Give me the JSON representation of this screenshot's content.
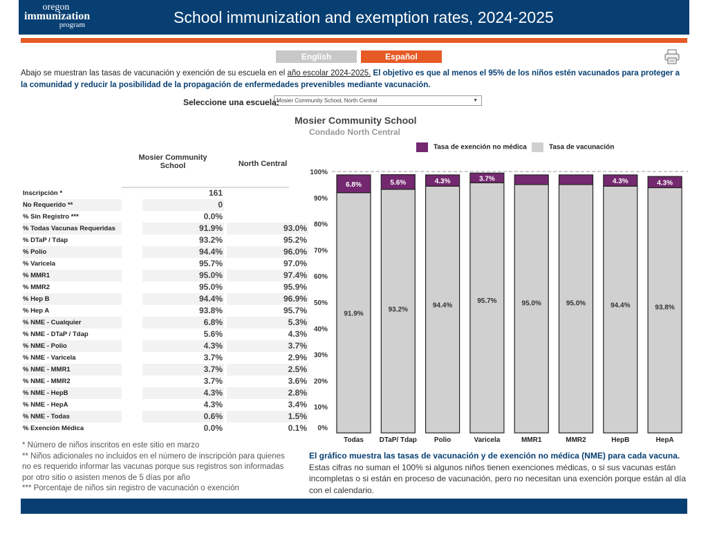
{
  "header": {
    "logo": [
      "oregon",
      "immunization",
      "program"
    ],
    "title": "School immunization and exemption rates, 2024-2025"
  },
  "lang": {
    "english": "English",
    "spanish": "Español"
  },
  "icons": {
    "print": "printer-icon"
  },
  "intro": {
    "p1": "Abajo se muestran las tasas de vacunación y exención de su escuela en el ",
    "link": "año escolar 2024-2025.",
    "p2": " El objetivo es que al menos el 95% de los niños estén vacunados para proteger a la comunidad y reducir la posibilidad de la propagación de enfermedades prevenibles mediante vacunación."
  },
  "selector": {
    "label": "Seleccione una escuela:",
    "value": "Mosier Community School, North Central"
  },
  "table": {
    "col1": "Mosier Community School",
    "col2": "North Central",
    "rows": [
      {
        "label": "Inscripción *",
        "school": "161",
        "county": ""
      },
      {
        "label": "No Requerido **",
        "school": "0",
        "county": ""
      },
      {
        "label": "% Sin Registro ***",
        "school": "0.0%",
        "county": ""
      },
      {
        "label": "% Todas Vacunas Requeridas",
        "school": "91.9%",
        "county": "93.0%"
      },
      {
        "label": "% DTaP / Tdap",
        "school": "93.2%",
        "county": "95.2%"
      },
      {
        "label": "% Polio",
        "school": "94.4%",
        "county": "96.0%"
      },
      {
        "label": "% Varicela",
        "school": "95.7%",
        "county": "97.0%"
      },
      {
        "label": "% MMR1",
        "school": "95.0%",
        "county": "97.4%"
      },
      {
        "label": "% MMR2",
        "school": "95.0%",
        "county": "95.9%"
      },
      {
        "label": "% Hep B",
        "school": "94.4%",
        "county": "96.9%"
      },
      {
        "label": "% Hep A",
        "school": "93.8%",
        "county": "95.7%"
      },
      {
        "label": "% NME - Cualquier",
        "school": "6.8%",
        "county": "5.3%"
      },
      {
        "label": "% NME - DTaP / Tdap",
        "school": "5.6%",
        "county": "4.3%"
      },
      {
        "label": "% NME - Polio",
        "school": "4.3%",
        "county": "3.7%"
      },
      {
        "label": "% NME - Varicela",
        "school": "3.7%",
        "county": "2.9%"
      },
      {
        "label": "% NME - MMR1",
        "school": "3.7%",
        "county": "2.5%"
      },
      {
        "label": "% NME - MMR2",
        "school": "3.7%",
        "county": "3.6%"
      },
      {
        "label": "% NME - HepB",
        "school": "4.3%",
        "county": "2.8%"
      },
      {
        "label": "% NME - HepA",
        "school": "4.3%",
        "county": "3.4%"
      },
      {
        "label": "% NME - Todas",
        "school": "0.6%",
        "county": "1.5%"
      },
      {
        "label": "% Exención Médica",
        "school": "0.0%",
        "county": "0.1%"
      }
    ]
  },
  "notes": [
    "* Número de niños inscritos en este sitio en marzo",
    "** Niños adicionales no incluidos en el número de inscripción para quienes no es requerido informar las vacunas porque sus registros son informadas por otro sitio o asisten menos de 5 días por año",
    "*** Porcentaje de niños sin registro de vacunación o exención"
  ],
  "chart_data": {
    "type": "bar",
    "stacked": true,
    "title": "Mosier Community School",
    "subtitle": "Condado North Central",
    "categories": [
      "Todas",
      "DTaP/ Tdap",
      "Polio",
      "Varicela",
      "MMR1",
      "MMR2",
      "HepB",
      "HepA"
    ],
    "series": [
      {
        "name": "Tasa de vacunación",
        "color": "#d0d0d0",
        "values": [
          91.9,
          93.2,
          94.4,
          95.7,
          95.0,
          95.0,
          94.4,
          93.8
        ],
        "labels": [
          "91.9%",
          "93.2%",
          "94.4%",
          "95.7%",
          "95.0%",
          "95.0%",
          "94.4%",
          "93.8%"
        ]
      },
      {
        "name": "Tasa de exención no médica",
        "color": "#74286f",
        "values": [
          6.8,
          5.6,
          4.3,
          3.7,
          3.7,
          3.7,
          4.3,
          4.3
        ],
        "labels": [
          "6.8%",
          "5.6%",
          "4.3%",
          "3.7%",
          "",
          "",
          "4.3%",
          "4.3%"
        ]
      }
    ],
    "yticks": [
      "0%",
      "10%",
      "20%",
      "30%",
      "40%",
      "50%",
      "60%",
      "70%",
      "80%",
      "90%",
      "100%"
    ],
    "ylim": [
      0,
      100
    ],
    "reference_line": 100,
    "legend": "top"
  },
  "caption": {
    "bold": "El gráfico muestra las tasas de vacunación y de exención no médica (NME) para cada vacuna.",
    "rest": " Estas cifras no suman el 100% si algunos niños tienen exenciones médicas, o si sus vacunas están incompletas o si están en proceso de vacunación, pero no necesitan una exención porque están al día con el calendario."
  }
}
